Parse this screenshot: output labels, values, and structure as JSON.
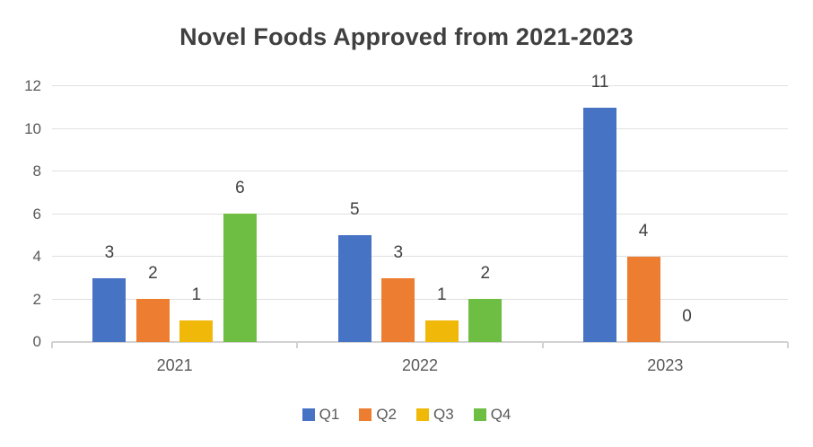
{
  "chart_data": {
    "type": "bar",
    "title": "Novel Foods Approved from 2021-2023",
    "categories": [
      "2021",
      "2022",
      "2023"
    ],
    "series": [
      {
        "name": "Q1",
        "color": "#4773C5",
        "values": [
          3,
          5,
          11
        ]
      },
      {
        "name": "Q2",
        "color": "#ED7D31",
        "values": [
          2,
          3,
          4
        ]
      },
      {
        "name": "Q3",
        "color": "#F0B90A",
        "values": [
          1,
          1,
          0
        ]
      },
      {
        "name": "Q4",
        "color": "#6FBE44",
        "values": [
          6,
          2,
          null
        ]
      }
    ],
    "ylim": [
      0,
      12
    ],
    "yticks": [
      0,
      2,
      4,
      6,
      8,
      10,
      12
    ],
    "xlabel": "",
    "ylabel": "",
    "grid": true,
    "data_labels": true,
    "legend_position": "bottom",
    "grid_color": "#E0E0E0",
    "axis_color": "#D2D2D2",
    "axis_text_color": "#595959",
    "data_label_color": "#404040",
    "title_color": "#404040"
  }
}
